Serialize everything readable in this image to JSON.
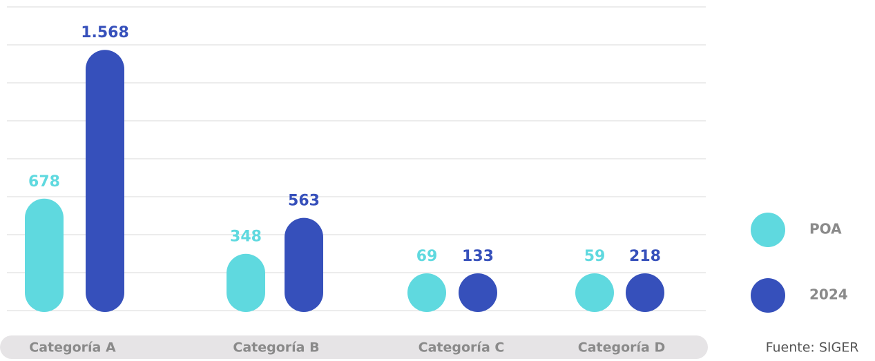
{
  "chart_data": {
    "type": "bar",
    "note": "Fuente: SIGER",
    "categories": [
      "Categoría A",
      "Categoría B",
      "Categoría C",
      "Categoría D"
    ],
    "series": [
      {
        "name": "POA",
        "color": "#5fd9df",
        "values": [
          678,
          348,
          69,
          59
        ],
        "value_labels": [
          "678",
          "348",
          "69",
          "59"
        ]
      },
      {
        "name": "2024",
        "color": "#3650bb",
        "values": [
          1568,
          563,
          133,
          218
        ],
        "value_labels": [
          "1.568",
          "563",
          "133",
          "218"
        ]
      }
    ],
    "ylim": [
      0,
      1800
    ]
  }
}
